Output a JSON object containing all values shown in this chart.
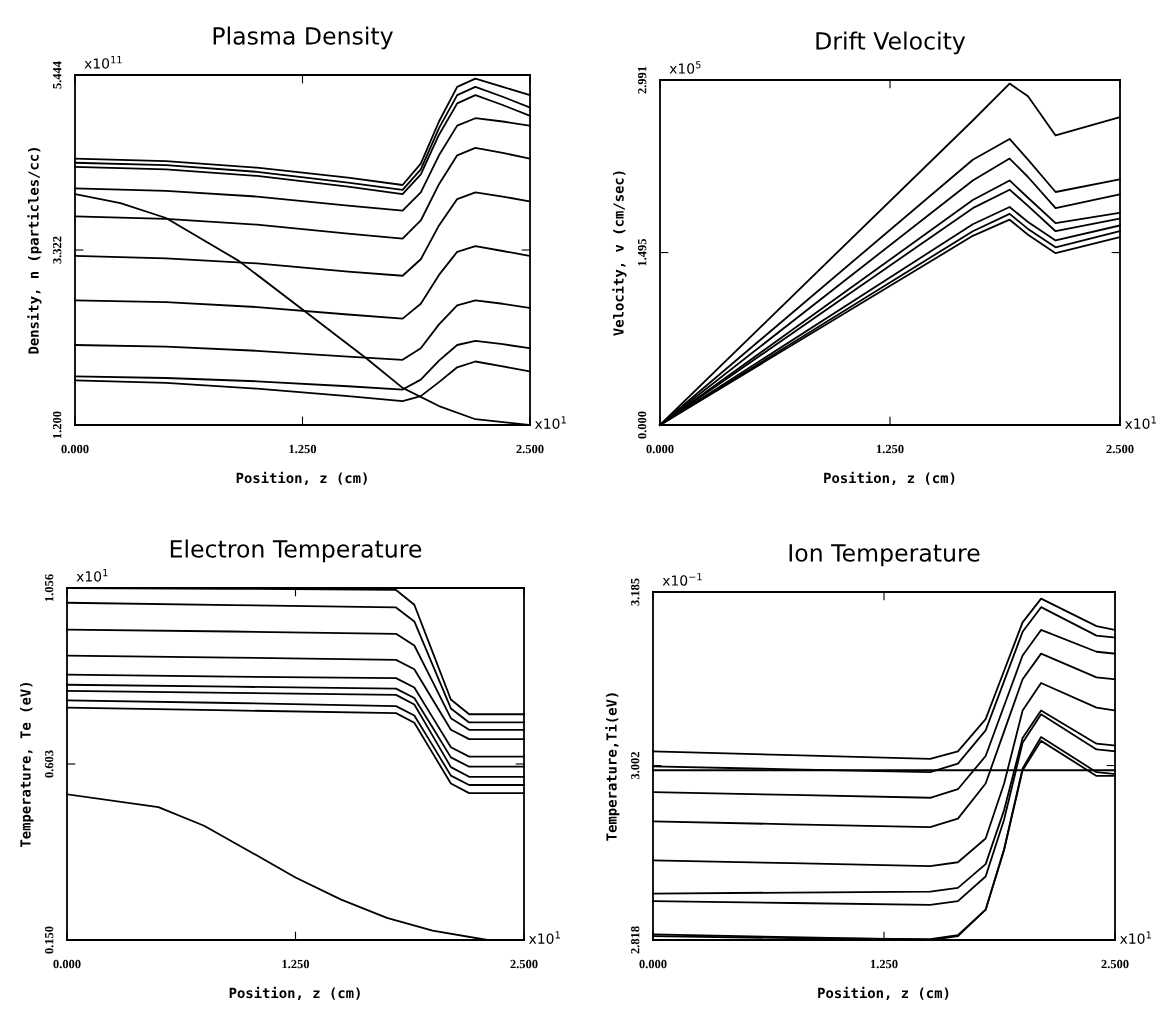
{
  "chart_data": [
    {
      "type": "line",
      "title": "Plasma Density",
      "xlabel": "Position, z (cm)",
      "ylabel": "Density, n (particles/cc)",
      "annotations": [
        "x10$^{11}$",
        "x10$^{1}$"
      ],
      "x": [
        0,
        0.5,
        1.0,
        1.5,
        1.8,
        1.9,
        2.0,
        2.1,
        2.2,
        2.35,
        2.5
      ],
      "xlim": [
        0,
        2.5
      ],
      "xticks": [
        {
          "value": 0,
          "label": "0.000"
        },
        {
          "value": 1.25,
          "label": "1.250"
        },
        {
          "value": 2.5,
          "label": "2.500"
        }
      ],
      "ylim": [
        1.2,
        5.444
      ],
      "yticks": [
        {
          "value": 1.2,
          "label": "1.200"
        },
        {
          "value": 3.322,
          "label": "3.322"
        },
        {
          "value": 5.444,
          "label": "5.444"
        }
      ],
      "grid": false,
      "marker": "none",
      "line_style": "solid",
      "series": [
        {
          "color": "#000000",
          "values": [
            4.43,
            4.4,
            4.32,
            4.2,
            4.11,
            4.37,
            4.88,
            5.3,
            5.4,
            5.3,
            5.2
          ]
        },
        {
          "color": "#000000",
          "values": [
            4.38,
            4.35,
            4.27,
            4.14,
            4.05,
            4.3,
            4.8,
            5.2,
            5.3,
            5.18,
            5.05
          ]
        },
        {
          "color": "#000000",
          "values": [
            4.33,
            4.3,
            4.22,
            4.09,
            4.0,
            4.24,
            4.72,
            5.1,
            5.2,
            5.08,
            4.95
          ]
        },
        {
          "color": "#000000",
          "values": [
            4.07,
            4.04,
            3.97,
            3.86,
            3.8,
            4.02,
            4.47,
            4.83,
            4.92,
            4.88,
            4.83
          ]
        },
        {
          "color": "#000000",
          "values": [
            3.73,
            3.7,
            3.63,
            3.52,
            3.46,
            3.68,
            4.12,
            4.47,
            4.56,
            4.5,
            4.43
          ]
        },
        {
          "color": "#000000",
          "values": [
            3.25,
            3.22,
            3.16,
            3.06,
            3.01,
            3.21,
            3.62,
            3.94,
            4.02,
            3.97,
            3.91
          ]
        },
        {
          "color": "#000000",
          "values": [
            2.71,
            2.69,
            2.63,
            2.54,
            2.49,
            2.67,
            3.02,
            3.3,
            3.37,
            3.31,
            3.25
          ]
        },
        {
          "color": "#000000",
          "values": [
            2.17,
            2.15,
            2.1,
            2.03,
            1.99,
            2.13,
            2.42,
            2.65,
            2.71,
            2.67,
            2.62
          ]
        },
        {
          "color": "#000000",
          "values": [
            1.79,
            1.77,
            1.73,
            1.67,
            1.63,
            1.75,
            1.98,
            2.17,
            2.22,
            2.18,
            2.13
          ]
        },
        {
          "color": "#000000",
          "values": [
            1.74,
            1.71,
            1.64,
            1.55,
            1.49,
            1.55,
            1.72,
            1.9,
            1.97,
            1.91,
            1.85
          ]
        },
        {
          "color": "#000000",
          "x": [
            0,
            0.25,
            0.5,
            0.9,
            1.25,
            1.6,
            1.8,
            2.0,
            2.2,
            2.5
          ],
          "values": [
            4.0,
            3.89,
            3.71,
            3.19,
            2.6,
            2.01,
            1.65,
            1.43,
            1.27,
            1.2
          ]
        }
      ]
    },
    {
      "type": "line",
      "title": "Drift Velocity",
      "xlabel": "Position, z (cm)",
      "ylabel": "Velocity, v (cm/sec)",
      "annotations": [
        "x10$^{5}$",
        "x10$^{1}$"
      ],
      "x": [
        0,
        1.7,
        1.9,
        2.0,
        2.15,
        2.5
      ],
      "xlim": [
        0,
        2.5
      ],
      "xticks": [
        {
          "value": 0,
          "label": "0.000"
        },
        {
          "value": 1.25,
          "label": "1.250"
        },
        {
          "value": 2.5,
          "label": "2.500"
        }
      ],
      "ylim": [
        0,
        2.991
      ],
      "yticks": [
        {
          "value": 0,
          "label": "0.000"
        },
        {
          "value": 1.495,
          "label": "1.495"
        },
        {
          "value": 2.991,
          "label": "2.991"
        }
      ],
      "grid": false,
      "marker": "none",
      "line_style": "solid",
      "series": [
        {
          "color": "#000000",
          "values": [
            0,
            2.64,
            2.96,
            2.85,
            2.51,
            2.67
          ]
        },
        {
          "color": "#000000",
          "values": [
            0,
            2.3,
            2.48,
            2.3,
            2.02,
            2.13
          ]
        },
        {
          "color": "#000000",
          "values": [
            0,
            2.12,
            2.31,
            2.15,
            1.88,
            2.0
          ]
        },
        {
          "color": "#000000",
          "values": [
            0,
            1.95,
            2.12,
            1.97,
            1.75,
            1.84
          ]
        },
        {
          "color": "#000000",
          "values": [
            0,
            1.88,
            2.04,
            1.9,
            1.68,
            1.79
          ]
        },
        {
          "color": "#000000",
          "values": [
            0,
            1.74,
            1.89,
            1.76,
            1.6,
            1.73
          ]
        },
        {
          "color": "#000000",
          "values": [
            0,
            1.68,
            1.83,
            1.7,
            1.54,
            1.68
          ]
        },
        {
          "color": "#000000",
          "values": [
            0,
            1.64,
            1.78,
            1.65,
            1.49,
            1.63
          ]
        }
      ]
    },
    {
      "type": "line",
      "title": "Electron Temperature",
      "xlabel": "Position, z (cm)",
      "ylabel": "Temperature, Te (eV)",
      "annotations": [
        "x10$^{1}$",
        "x10$^{1}$"
      ],
      "x": [
        0,
        0.9,
        1.8,
        1.9,
        2.0,
        2.1,
        2.2,
        2.5
      ],
      "xlim": [
        0,
        2.5
      ],
      "xticks": [
        {
          "value": 0,
          "label": "0.000"
        },
        {
          "value": 1.25,
          "label": "1.250"
        },
        {
          "value": 2.5,
          "label": "2.500"
        }
      ],
      "ylim": [
        0.15,
        1.056
      ],
      "yticks": [
        {
          "value": 0.15,
          "label": "0.150"
        },
        {
          "value": 0.603,
          "label": "0.603"
        },
        {
          "value": 1.056,
          "label": "1.056"
        }
      ],
      "grid": false,
      "marker": "none",
      "line_style": "solid",
      "series": [
        {
          "color": "#000000",
          "values": [
            1.056,
            1.054,
            1.051,
            1.013,
            0.891,
            0.769,
            0.731,
            0.731
          ]
        },
        {
          "color": "#000000",
          "values": [
            1.018,
            1.012,
            1.006,
            0.97,
            0.858,
            0.746,
            0.71,
            0.71
          ]
        },
        {
          "color": "#000000",
          "values": [
            0.949,
            0.944,
            0.938,
            0.908,
            0.815,
            0.721,
            0.691,
            0.691
          ]
        },
        {
          "color": "#000000",
          "values": [
            0.882,
            0.877,
            0.871,
            0.847,
            0.769,
            0.691,
            0.667,
            0.667
          ]
        },
        {
          "color": "#000000",
          "values": [
            0.833,
            0.828,
            0.824,
            0.8,
            0.723,
            0.646,
            0.622,
            0.622
          ]
        },
        {
          "color": "#000000",
          "values": [
            0.807,
            0.802,
            0.797,
            0.773,
            0.697,
            0.62,
            0.596,
            0.596
          ]
        },
        {
          "color": "#000000",
          "values": [
            0.791,
            0.786,
            0.781,
            0.756,
            0.676,
            0.595,
            0.57,
            0.57
          ]
        },
        {
          "color": "#000000",
          "values": [
            0.767,
            0.76,
            0.752,
            0.728,
            0.651,
            0.573,
            0.549,
            0.549
          ]
        },
        {
          "color": "#000000",
          "values": [
            0.748,
            0.741,
            0.734,
            0.709,
            0.631,
            0.553,
            0.528,
            0.528
          ]
        },
        {
          "color": "#000000",
          "x": [
            0,
            0.5,
            0.75,
            1.0,
            1.25,
            1.5,
            1.75,
            2.0,
            2.3,
            2.5
          ],
          "values": [
            0.525,
            0.492,
            0.444,
            0.378,
            0.311,
            0.254,
            0.207,
            0.174,
            0.15,
            0.15
          ]
        }
      ]
    },
    {
      "type": "line",
      "title": "Ion Temperature",
      "xlabel": "Position, z (cm)",
      "ylabel": "Temperature,Ti(eV)",
      "annotations": [
        "x10$^{−1}$",
        "x10$^{1}$"
      ],
      "x": [
        0,
        0.75,
        1.5,
        1.65,
        1.8,
        1.9,
        2.0,
        2.1,
        2.4,
        2.5
      ],
      "xlim": [
        0,
        2.5
      ],
      "xticks": [
        {
          "value": 0,
          "label": "0.000"
        },
        {
          "value": 1.25,
          "label": "1.250"
        },
        {
          "value": 2.5,
          "label": "2.500"
        }
      ],
      "ylim": [
        2.818,
        3.185
      ],
      "yticks": [
        {
          "value": 2.818,
          "label": "2.818"
        },
        {
          "value": 3.002,
          "label": "3.002"
        },
        {
          "value": 3.185,
          "label": "3.185"
        }
      ],
      "grid": false,
      "marker": "none",
      "line_style": "solid",
      "series": [
        {
          "color": "#000000",
          "values": [
            3.017,
            3.013,
            3.009,
            3.017,
            3.051,
            3.102,
            3.153,
            3.178,
            3.149,
            3.145
          ]
        },
        {
          "color": "#000000",
          "values": [
            3.001,
            2.998,
            2.995,
            3.004,
            3.039,
            3.091,
            3.143,
            3.169,
            3.139,
            3.137
          ]
        },
        {
          "color": "#000000",
          "x": [
            0,
            2.5
          ],
          "values": [
            2.997,
            2.997
          ]
        },
        {
          "color": "#000000",
          "values": [
            2.974,
            2.971,
            2.968,
            2.977,
            3.012,
            3.065,
            3.118,
            3.145,
            3.122,
            3.12
          ]
        },
        {
          "color": "#000000",
          "values": [
            2.943,
            2.94,
            2.937,
            2.946,
            2.983,
            3.038,
            3.093,
            3.12,
            3.095,
            3.093
          ]
        },
        {
          "color": "#000000",
          "values": [
            2.902,
            2.899,
            2.896,
            2.9,
            2.925,
            2.983,
            3.06,
            3.089,
            3.063,
            3.06
          ]
        },
        {
          "color": "#000000",
          "values": [
            2.867,
            2.868,
            2.869,
            2.873,
            2.898,
            2.955,
            3.031,
            3.06,
            3.025,
            3.023
          ]
        },
        {
          "color": "#000000",
          "values": [
            2.859,
            2.857,
            2.855,
            2.859,
            2.885,
            2.945,
            3.026,
            3.056,
            3.019,
            3.017
          ]
        },
        {
          "color": "#000000",
          "values": [
            2.824,
            2.821,
            2.818,
            2.822,
            2.85,
            2.914,
            2.999,
            3.032,
            2.995,
            2.993
          ]
        },
        {
          "color": "#000000",
          "values": [
            2.822,
            2.82,
            2.819,
            2.823,
            2.85,
            2.913,
            2.997,
            3.028,
            2.991,
            2.991
          ]
        }
      ]
    }
  ]
}
